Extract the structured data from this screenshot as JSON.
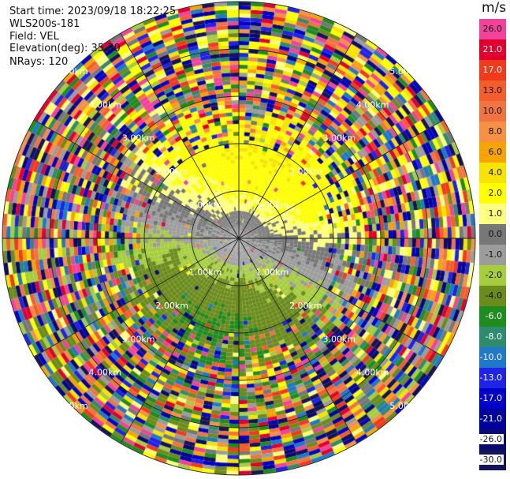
{
  "header": {
    "start_time": "Start time: 2023/09/18 18:22:25",
    "station": "WLS200s-181",
    "field": "Field: VEL",
    "elevation": "Elevation(deg): 35.30",
    "nrays": "NRays: 120"
  },
  "ppi": {
    "range_ring_labels": [
      "1.00km",
      "2.00km",
      "3.00km",
      "4.00km",
      "5.00km"
    ],
    "azimuth_lines_deg": [
      0,
      30,
      60,
      90,
      120,
      150,
      180,
      210,
      240,
      270,
      300,
      330
    ],
    "nrays": 120,
    "max_range_km": 5.0
  },
  "colorbar": {
    "unit": "m/s",
    "levels": [
      {
        "label": "26.0",
        "color": "#f2439a"
      },
      {
        "label": "21.0",
        "color": "#e00030"
      },
      {
        "label": "17.0",
        "color": "#f03a1c"
      },
      {
        "label": "13.0",
        "color": "#f45e2c"
      },
      {
        "label": "10.0",
        "color": "#f07442"
      },
      {
        "label": "8.0",
        "color": "#f59045"
      },
      {
        "label": "6.0",
        "color": "#f5a400"
      },
      {
        "label": "4.0",
        "color": "#f7e300"
      },
      {
        "label": "2.0",
        "color": "#ffff00"
      },
      {
        "label": "1.0",
        "color": "#fdff7e"
      },
      {
        "label": "0.0",
        "color": "#777777"
      },
      {
        "label": "-1.0",
        "color": "#9c9c9c"
      },
      {
        "label": "-2.0",
        "color": "#a6cd3e"
      },
      {
        "label": "-4.0",
        "color": "#6b8b1c"
      },
      {
        "label": "-6.0",
        "color": "#1f8c1f"
      },
      {
        "label": "-8.0",
        "color": "#2e8c6e"
      },
      {
        "label": "-10.0",
        "color": "#1f78c8"
      },
      {
        "label": "-13.0",
        "color": "#1e23e6"
      },
      {
        "label": "-17.0",
        "color": "#0000c8"
      },
      {
        "label": "-21.0",
        "color": "#00009c"
      },
      {
        "label": "-26.0",
        "color": "#0a0a6e"
      },
      {
        "label": "-30.0",
        "color": "#14145a"
      }
    ]
  }
}
